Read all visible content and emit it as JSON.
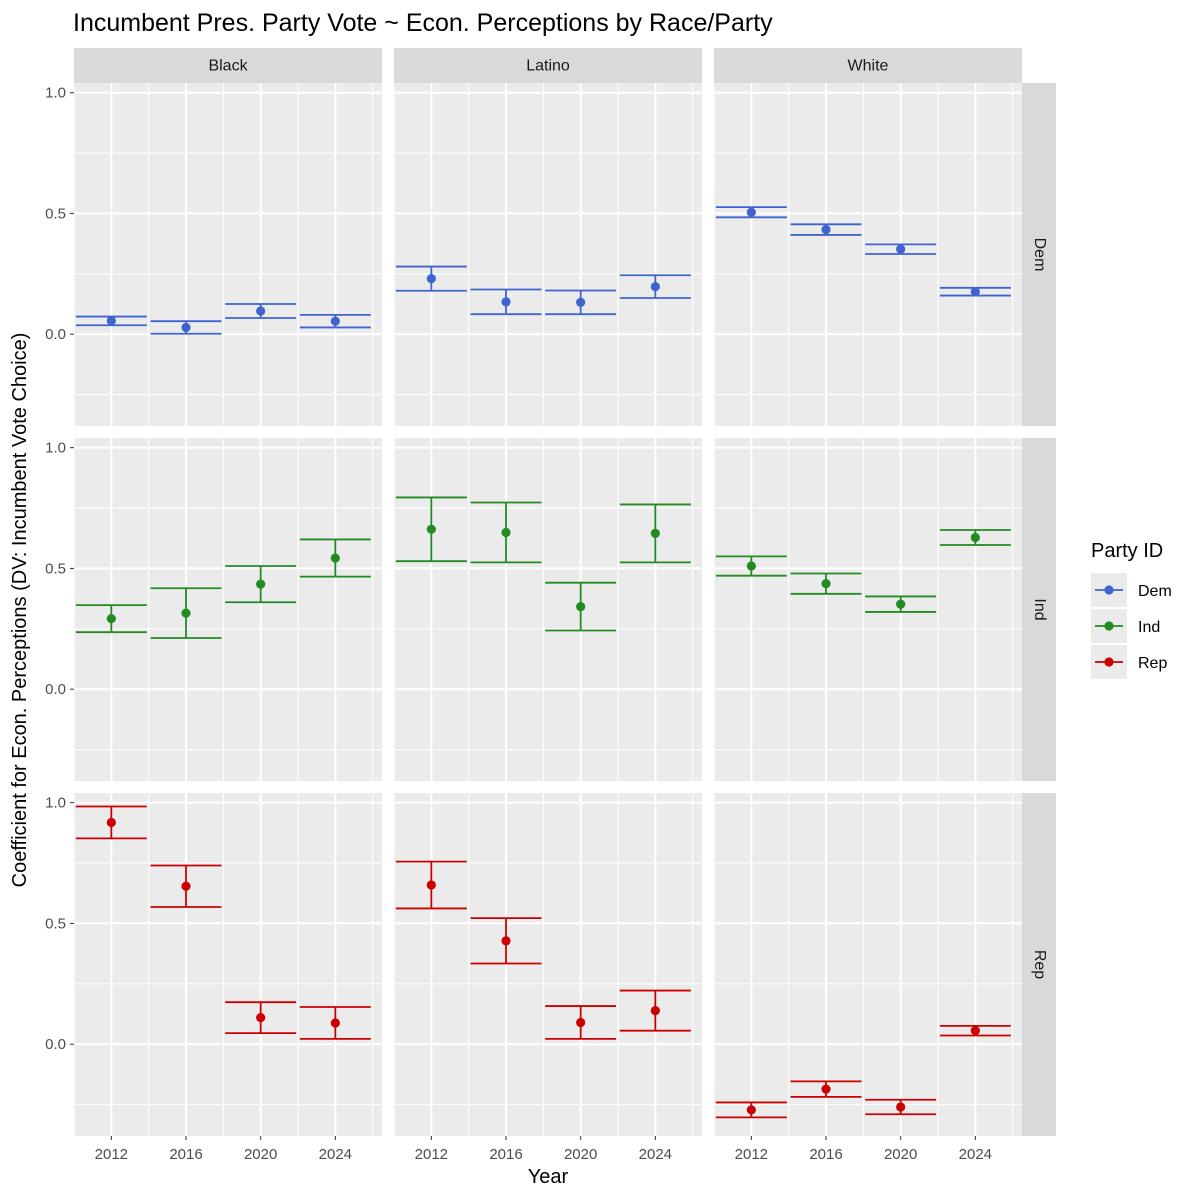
{
  "chart_data": {
    "type": "errorbar",
    "title": "Incumbent Pres. Party Vote ~ Econ. Perceptions by Race/Party",
    "xlabel": "Year",
    "ylabel": "Coefficient for Econ. Perceptions (DV: Incumbent Vote Choice)",
    "ylim": [
      -0.38,
      1.04
    ],
    "y_ticks": [
      "0.0",
      "0.5",
      "1.0"
    ],
    "x_categories": [
      "2012",
      "2016",
      "2020",
      "2024"
    ],
    "columns": [
      "Black",
      "Latino",
      "White"
    ],
    "rows": [
      "Dem",
      "Ind",
      "Rep"
    ],
    "legend": {
      "title": "Party ID",
      "position": "right",
      "items": [
        {
          "label": "Dem",
          "color": "#3f63cf"
        },
        {
          "label": "Ind",
          "color": "#228b22"
        },
        {
          "label": "Rep",
          "color": "#cc0000"
        }
      ]
    },
    "panels": [
      {
        "column": "Black",
        "row": "Dem",
        "points": [
          {
            "year": "2012",
            "est": 0.055,
            "lo": 0.037,
            "hi": 0.073
          },
          {
            "year": "2016",
            "est": 0.028,
            "lo": 0.002,
            "hi": 0.054
          },
          {
            "year": "2020",
            "est": 0.096,
            "lo": 0.067,
            "hi": 0.125
          },
          {
            "year": "2024",
            "est": 0.054,
            "lo": 0.028,
            "hi": 0.08
          }
        ]
      },
      {
        "column": "Latino",
        "row": "Dem",
        "points": [
          {
            "year": "2012",
            "est": 0.23,
            "lo": 0.18,
            "hi": 0.28
          },
          {
            "year": "2016",
            "est": 0.134,
            "lo": 0.083,
            "hi": 0.185
          },
          {
            "year": "2020",
            "est": 0.132,
            "lo": 0.083,
            "hi": 0.181
          },
          {
            "year": "2024",
            "est": 0.197,
            "lo": 0.15,
            "hi": 0.244
          }
        ]
      },
      {
        "column": "White",
        "row": "Dem",
        "points": [
          {
            "year": "2012",
            "est": 0.505,
            "lo": 0.484,
            "hi": 0.526
          },
          {
            "year": "2016",
            "est": 0.433,
            "lo": 0.411,
            "hi": 0.455
          },
          {
            "year": "2020",
            "est": 0.352,
            "lo": 0.332,
            "hi": 0.372
          },
          {
            "year": "2024",
            "est": 0.176,
            "lo": 0.16,
            "hi": 0.192
          }
        ]
      },
      {
        "column": "Black",
        "row": "Ind",
        "points": [
          {
            "year": "2012",
            "est": 0.292,
            "lo": 0.236,
            "hi": 0.348
          },
          {
            "year": "2016",
            "est": 0.315,
            "lo": 0.212,
            "hi": 0.418
          },
          {
            "year": "2020",
            "est": 0.435,
            "lo": 0.36,
            "hi": 0.51
          },
          {
            "year": "2024",
            "est": 0.543,
            "lo": 0.466,
            "hi": 0.62
          }
        ]
      },
      {
        "column": "Latino",
        "row": "Ind",
        "points": [
          {
            "year": "2012",
            "est": 0.662,
            "lo": 0.53,
            "hi": 0.794
          },
          {
            "year": "2016",
            "est": 0.649,
            "lo": 0.525,
            "hi": 0.773
          },
          {
            "year": "2020",
            "est": 0.342,
            "lo": 0.243,
            "hi": 0.441
          },
          {
            "year": "2024",
            "est": 0.645,
            "lo": 0.525,
            "hi": 0.765
          }
        ]
      },
      {
        "column": "White",
        "row": "Ind",
        "points": [
          {
            "year": "2012",
            "est": 0.51,
            "lo": 0.47,
            "hi": 0.55
          },
          {
            "year": "2016",
            "est": 0.437,
            "lo": 0.395,
            "hi": 0.479
          },
          {
            "year": "2020",
            "est": 0.352,
            "lo": 0.32,
            "hi": 0.384
          },
          {
            "year": "2024",
            "est": 0.628,
            "lo": 0.597,
            "hi": 0.659
          }
        ]
      },
      {
        "column": "Black",
        "row": "Rep",
        "points": [
          {
            "year": "2012",
            "est": 0.918,
            "lo": 0.852,
            "hi": 0.984
          },
          {
            "year": "2016",
            "est": 0.654,
            "lo": 0.568,
            "hi": 0.74
          },
          {
            "year": "2020",
            "est": 0.11,
            "lo": 0.046,
            "hi": 0.174
          },
          {
            "year": "2024",
            "est": 0.088,
            "lo": 0.022,
            "hi": 0.154
          }
        ]
      },
      {
        "column": "Latino",
        "row": "Rep",
        "points": [
          {
            "year": "2012",
            "est": 0.659,
            "lo": 0.562,
            "hi": 0.756
          },
          {
            "year": "2016",
            "est": 0.428,
            "lo": 0.334,
            "hi": 0.522
          },
          {
            "year": "2020",
            "est": 0.09,
            "lo": 0.022,
            "hi": 0.158
          },
          {
            "year": "2024",
            "est": 0.139,
            "lo": 0.056,
            "hi": 0.222
          }
        ]
      },
      {
        "column": "White",
        "row": "Rep",
        "points": [
          {
            "year": "2012",
            "est": -0.272,
            "lo": -0.303,
            "hi": -0.241
          },
          {
            "year": "2016",
            "est": -0.186,
            "lo": -0.218,
            "hi": -0.154
          },
          {
            "year": "2020",
            "est": -0.26,
            "lo": -0.29,
            "hi": -0.23
          },
          {
            "year": "2024",
            "est": 0.056,
            "lo": 0.036,
            "hi": 0.076
          }
        ]
      }
    ]
  }
}
